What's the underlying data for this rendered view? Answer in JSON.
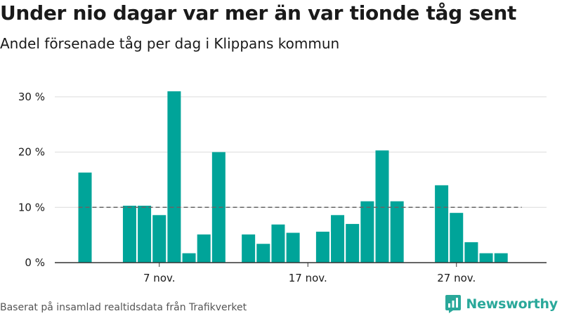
{
  "title": "Under nio dagar var mer än var tionde tåg sent",
  "subtitle": "Andel försenade tåg per dag i Klippans kommun",
  "source": "Baserat på insamlad realtidsdata från Trafikverket",
  "brand": {
    "name": "Newsworthy",
    "icon": "bar-chart-logo-icon"
  },
  "colors": {
    "bar": "#00a499",
    "grid": "#dcdcdc",
    "axis": "#333333",
    "reference": "#666666"
  },
  "chart_data": {
    "type": "bar",
    "x": [
      "2 nov.",
      "3 nov.",
      "4 nov.",
      "5 nov.",
      "6 nov.",
      "7 nov.",
      "8 nov.",
      "9 nov.",
      "10 nov.",
      "11 nov.",
      "12 nov.",
      "13 nov.",
      "14 nov.",
      "15 nov.",
      "16 nov.",
      "17 nov.",
      "18 nov.",
      "19 nov.",
      "20 nov.",
      "21 nov.",
      "22 nov.",
      "23 nov.",
      "24 nov.",
      "25 nov.",
      "26 nov.",
      "27 nov.",
      "28 nov.",
      "29 nov.",
      "30 nov."
    ],
    "values": [
      16.3,
      null,
      null,
      10.3,
      10.3,
      8.6,
      31.0,
      1.7,
      5.1,
      20.0,
      null,
      5.1,
      3.4,
      6.9,
      5.4,
      null,
      5.6,
      8.6,
      7.0,
      11.1,
      20.3,
      11.1,
      null,
      null,
      14.0,
      9.0,
      3.7,
      1.7,
      1.7
    ],
    "y_ticks": [
      0,
      10,
      20,
      30
    ],
    "y_tick_labels": [
      "0 %",
      "10 %",
      "20 %",
      "30 %"
    ],
    "x_ticks": [
      "7 nov.",
      "17 nov.",
      "27 nov."
    ],
    "reference_line": 10,
    "ylim": [
      0,
      33
    ],
    "grid": true,
    "unit": "%"
  }
}
